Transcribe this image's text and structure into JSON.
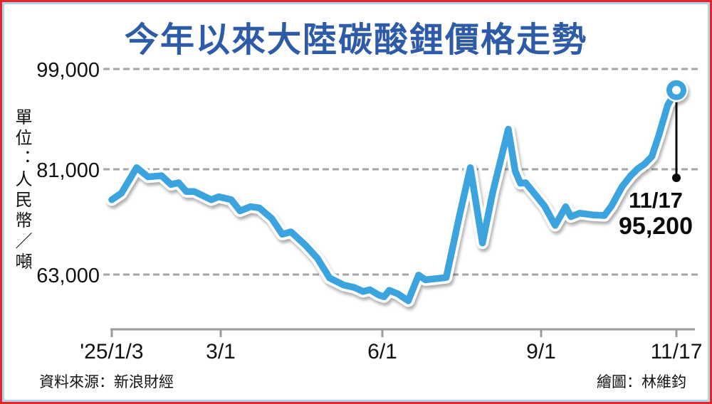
{
  "frame": {
    "border_outer_color": "#e5232b",
    "border_inner_color": "#abd5ea",
    "background": "#ffffff"
  },
  "title": {
    "text": "今年以來大陸碳酸鋰價格走勢",
    "color": "#2e5ba8"
  },
  "y_axis": {
    "unit_label": "單位：人民幣／噸",
    "ticks": [
      {
        "label": "99,000",
        "value": 99000
      },
      {
        "label": "81,000",
        "value": 81000
      },
      {
        "label": "63,000",
        "value": 63000
      }
    ]
  },
  "x_axis": {
    "ticks": [
      {
        "label": "'25/1/3",
        "day": 0
      },
      {
        "label": "3/1",
        "day": 57
      },
      {
        "label": "6/1",
        "day": 149
      },
      {
        "label": "9/1",
        "day": 241
      },
      {
        "label": "11/17",
        "day": 318
      }
    ]
  },
  "annotation": {
    "date": "11/17",
    "value": "95,200"
  },
  "footer": {
    "source": "資料來源：新浪財經",
    "credit": "繪圖：林維鈞"
  },
  "chart_data": {
    "type": "line",
    "title": "今年以來大陸碳酸鋰價格走勢",
    "series_name": "大陸碳酸鋰價格",
    "unit": "人民幣／噸",
    "line_color": "#3aa3de",
    "grid": "dashed-horizontal",
    "ylim": [
      57000,
      100500
    ],
    "y_ticks": [
      99000,
      81000,
      63000
    ],
    "x_tick_labels": [
      "'25/1/3",
      "3/1",
      "6/1",
      "9/1",
      "11/17"
    ],
    "last_point": {
      "date": "11/17",
      "value": 95200
    },
    "points": [
      {
        "date": "1/3",
        "day": 0,
        "value": 75800
      },
      {
        "date": "1/8",
        "day": 5,
        "value": 76900
      },
      {
        "date": "1/16",
        "day": 13,
        "value": 81300
      },
      {
        "date": "1/22",
        "day": 19,
        "value": 79700
      },
      {
        "date": "1/29",
        "day": 26,
        "value": 79900
      },
      {
        "date": "2/3",
        "day": 31,
        "value": 78400
      },
      {
        "date": "2/7",
        "day": 35,
        "value": 78700
      },
      {
        "date": "2/11",
        "day": 39,
        "value": 77200
      },
      {
        "date": "2/15",
        "day": 43,
        "value": 77200
      },
      {
        "date": "2/19",
        "day": 47,
        "value": 76600
      },
      {
        "date": "2/24",
        "day": 52,
        "value": 75800
      },
      {
        "date": "2/28",
        "day": 56,
        "value": 76300
      },
      {
        "date": "3/7",
        "day": 63,
        "value": 75800
      },
      {
        "date": "3/12",
        "day": 68,
        "value": 73900
      },
      {
        "date": "3/18",
        "day": 74,
        "value": 74600
      },
      {
        "date": "3/23",
        "day": 79,
        "value": 74400
      },
      {
        "date": "3/30",
        "day": 86,
        "value": 72600
      },
      {
        "date": "4/5",
        "day": 92,
        "value": 69900
      },
      {
        "date": "4/10",
        "day": 97,
        "value": 70300
      },
      {
        "date": "4/18",
        "day": 105,
        "value": 68100
      },
      {
        "date": "4/25",
        "day": 112,
        "value": 65800
      },
      {
        "date": "5/2",
        "day": 119,
        "value": 62400
      },
      {
        "date": "5/10",
        "day": 127,
        "value": 61200
      },
      {
        "date": "5/16",
        "day": 133,
        "value": 60800
      },
      {
        "date": "5/21",
        "day": 138,
        "value": 60100
      },
      {
        "date": "5/25",
        "day": 142,
        "value": 60400
      },
      {
        "date": "5/30",
        "day": 147,
        "value": 59500
      },
      {
        "date": "6/2",
        "day": 150,
        "value": 59200
      },
      {
        "date": "6/5",
        "day": 153,
        "value": 60300
      },
      {
        "date": "6/10",
        "day": 158,
        "value": 59700
      },
      {
        "date": "6/16",
        "day": 164,
        "value": 58500
      },
      {
        "date": "6/19",
        "day": 167,
        "value": 60700
      },
      {
        "date": "6/22",
        "day": 170,
        "value": 62900
      },
      {
        "date": "6/26",
        "day": 174,
        "value": 62100
      },
      {
        "date": "7/2",
        "day": 180,
        "value": 62300
      },
      {
        "date": "7/8",
        "day": 186,
        "value": 62500
      },
      {
        "date": "7/16",
        "day": 194,
        "value": 73500
      },
      {
        "date": "7/22",
        "day": 200,
        "value": 81300
      },
      {
        "date": "7/29",
        "day": 207,
        "value": 68400
      },
      {
        "date": "8/4",
        "day": 213,
        "value": 77100
      },
      {
        "date": "8/13",
        "day": 222,
        "value": 88200
      },
      {
        "date": "8/17",
        "day": 226,
        "value": 80700
      },
      {
        "date": "8/20",
        "day": 229,
        "value": 78600
      },
      {
        "date": "8/23",
        "day": 232,
        "value": 78700
      },
      {
        "date": "8/28",
        "day": 237,
        "value": 76900
      },
      {
        "date": "9/3",
        "day": 243,
        "value": 74700
      },
      {
        "date": "9/9",
        "day": 249,
        "value": 71400
      },
      {
        "date": "9/15",
        "day": 255,
        "value": 74600
      },
      {
        "date": "9/18",
        "day": 258,
        "value": 72900
      },
      {
        "date": "9/23",
        "day": 263,
        "value": 73500
      },
      {
        "date": "9/30",
        "day": 270,
        "value": 73200
      },
      {
        "date": "10/7",
        "day": 277,
        "value": 73100
      },
      {
        "date": "10/11",
        "day": 281,
        "value": 74700
      },
      {
        "date": "10/17",
        "day": 287,
        "value": 78000
      },
      {
        "date": "10/22",
        "day": 292,
        "value": 79900
      },
      {
        "date": "10/26",
        "day": 296,
        "value": 81100
      },
      {
        "date": "10/30",
        "day": 300,
        "value": 82000
      },
      {
        "date": "11/3",
        "day": 304,
        "value": 83300
      },
      {
        "date": "11/7",
        "day": 308,
        "value": 87100
      },
      {
        "date": "11/12",
        "day": 313,
        "value": 92500
      },
      {
        "date": "11/17",
        "day": 318,
        "value": 95200
      }
    ]
  }
}
